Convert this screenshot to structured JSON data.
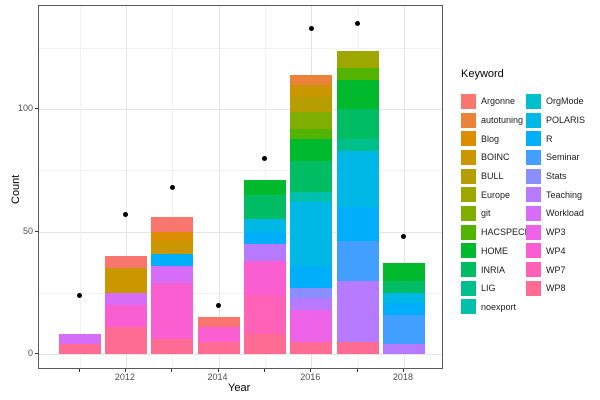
{
  "chart_data": {
    "type": "bar",
    "stacked": true,
    "xlabel": "Year",
    "ylabel": "Count",
    "x_years": [
      2011,
      2012,
      2013,
      2014,
      2015,
      2016,
      2017,
      2018
    ],
    "x_labeled_years": [
      2012,
      2014,
      2016,
      2018
    ],
    "y_major_ticks": [
      0,
      50,
      100
    ],
    "y_minor_ticks": [
      25,
      75,
      125
    ],
    "ylim": [
      0,
      142
    ],
    "grid": true,
    "legend": {
      "title": "Keyword",
      "position": "right",
      "columns": 2,
      "entries": [
        {
          "label": "Argonne",
          "color": "#F8766D"
        },
        {
          "label": "autotuning",
          "color": "#EC8239"
        },
        {
          "label": "Blog",
          "color": "#DD8D00"
        },
        {
          "label": "BOINC",
          "color": "#CB9700"
        },
        {
          "label": "BULL",
          "color": "#B69E00"
        },
        {
          "label": "Europe",
          "color": "#9EA700"
        },
        {
          "label": "git",
          "color": "#7FAD00"
        },
        {
          "label": "HACSPECIS",
          "color": "#53B400"
        },
        {
          "label": "HOME",
          "color": "#00B92C"
        },
        {
          "label": "INRIA",
          "color": "#00BD64"
        },
        {
          "label": "LIG",
          "color": "#00BF8A"
        },
        {
          "label": "noexport",
          "color": "#00C0AC"
        },
        {
          "label": "OrgMode",
          "color": "#00BECA"
        },
        {
          "label": "POLARIS",
          "color": "#00B8E5"
        },
        {
          "label": "R",
          "color": "#00AEF9"
        },
        {
          "label": "Seminar",
          "color": "#429FFF"
        },
        {
          "label": "Stats",
          "color": "#8A8EFF"
        },
        {
          "label": "Teaching",
          "color": "#B57AFF"
        },
        {
          "label": "Workload",
          "color": "#D56DF8"
        },
        {
          "label": "WP3",
          "color": "#EC63E7"
        },
        {
          "label": "WP4",
          "color": "#FA5FD1"
        },
        {
          "label": "WP7",
          "color": "#FF62B6"
        },
        {
          "label": "WP8",
          "color": "#FF6C93"
        }
      ]
    },
    "bars": [
      {
        "year": 2011,
        "total": 8,
        "segments": [
          {
            "keyword": "Workload",
            "value": 4
          },
          {
            "keyword": "WP8",
            "value": 4
          }
        ]
      },
      {
        "year": 2012,
        "total": 40,
        "segments": [
          {
            "keyword": "Argonne",
            "value": 5
          },
          {
            "keyword": "BOINC",
            "value": 10
          },
          {
            "keyword": "Workload",
            "value": 5
          },
          {
            "keyword": "WP4",
            "value": 9
          },
          {
            "keyword": "WP8",
            "value": 11
          }
        ]
      },
      {
        "year": 2013,
        "total": 56,
        "segments": [
          {
            "keyword": "Argonne",
            "value": 6
          },
          {
            "keyword": "Blog",
            "value": 4
          },
          {
            "keyword": "BOINC",
            "value": 5
          },
          {
            "keyword": "R",
            "value": 5
          },
          {
            "keyword": "Workload",
            "value": 7
          },
          {
            "keyword": "WP4",
            "value": 23
          },
          {
            "keyword": "WP8",
            "value": 6
          }
        ]
      },
      {
        "year": 2014,
        "total": 15,
        "segments": [
          {
            "keyword": "Argonne",
            "value": 4
          },
          {
            "keyword": "WP4",
            "value": 6
          },
          {
            "keyword": "WP8",
            "value": 5
          }
        ]
      },
      {
        "year": 2015,
        "total": 71,
        "segments": [
          {
            "keyword": "HOME",
            "value": 6
          },
          {
            "keyword": "INRIA",
            "value": 10
          },
          {
            "keyword": "POLARIS",
            "value": 5
          },
          {
            "keyword": "R",
            "value": 5
          },
          {
            "keyword": "Teaching",
            "value": 7
          },
          {
            "keyword": "WP4",
            "value": 14
          },
          {
            "keyword": "WP7",
            "value": 16
          },
          {
            "keyword": "WP8",
            "value": 8
          }
        ]
      },
      {
        "year": 2016,
        "total": 114,
        "segments": [
          {
            "keyword": "autotuning",
            "value": 4
          },
          {
            "keyword": "BOINC",
            "value": 5
          },
          {
            "keyword": "BULL",
            "value": 6
          },
          {
            "keyword": "git",
            "value": 7
          },
          {
            "keyword": "HACSPECIS",
            "value": 4
          },
          {
            "keyword": "HOME",
            "value": 9
          },
          {
            "keyword": "INRIA",
            "value": 13
          },
          {
            "keyword": "noexport",
            "value": 4
          },
          {
            "keyword": "POLARIS",
            "value": 26
          },
          {
            "keyword": "R",
            "value": 9
          },
          {
            "keyword": "Stats",
            "value": 4
          },
          {
            "keyword": "Teaching",
            "value": 5
          },
          {
            "keyword": "WP3",
            "value": 13
          },
          {
            "keyword": "WP8",
            "value": 5
          }
        ]
      },
      {
        "year": 2017,
        "total": 124,
        "segments": [
          {
            "keyword": "Europe",
            "value": 7
          },
          {
            "keyword": "HACSPECIS",
            "value": 5
          },
          {
            "keyword": "HOME",
            "value": 12
          },
          {
            "keyword": "INRIA",
            "value": 12
          },
          {
            "keyword": "LIG",
            "value": 5
          },
          {
            "keyword": "POLARIS",
            "value": 23
          },
          {
            "keyword": "R",
            "value": 14
          },
          {
            "keyword": "Seminar",
            "value": 16
          },
          {
            "keyword": "Teaching",
            "value": 25
          },
          {
            "keyword": "WP8",
            "value": 5
          }
        ]
      },
      {
        "year": 2018,
        "total": 37,
        "segments": [
          {
            "keyword": "HOME",
            "value": 7
          },
          {
            "keyword": "INRIA",
            "value": 5
          },
          {
            "keyword": "POLARIS",
            "value": 4
          },
          {
            "keyword": "R",
            "value": 5
          },
          {
            "keyword": "Seminar",
            "value": 12
          },
          {
            "keyword": "Teaching",
            "value": 4
          }
        ]
      }
    ],
    "points": [
      {
        "year": 2011,
        "count": 24
      },
      {
        "year": 2012,
        "count": 57
      },
      {
        "year": 2013,
        "count": 68
      },
      {
        "year": 2014,
        "count": 20
      },
      {
        "year": 2015,
        "count": 80
      },
      {
        "year": 2016,
        "count": 133
      },
      {
        "year": 2017,
        "count": 135
      },
      {
        "year": 2018,
        "count": 48
      }
    ]
  }
}
